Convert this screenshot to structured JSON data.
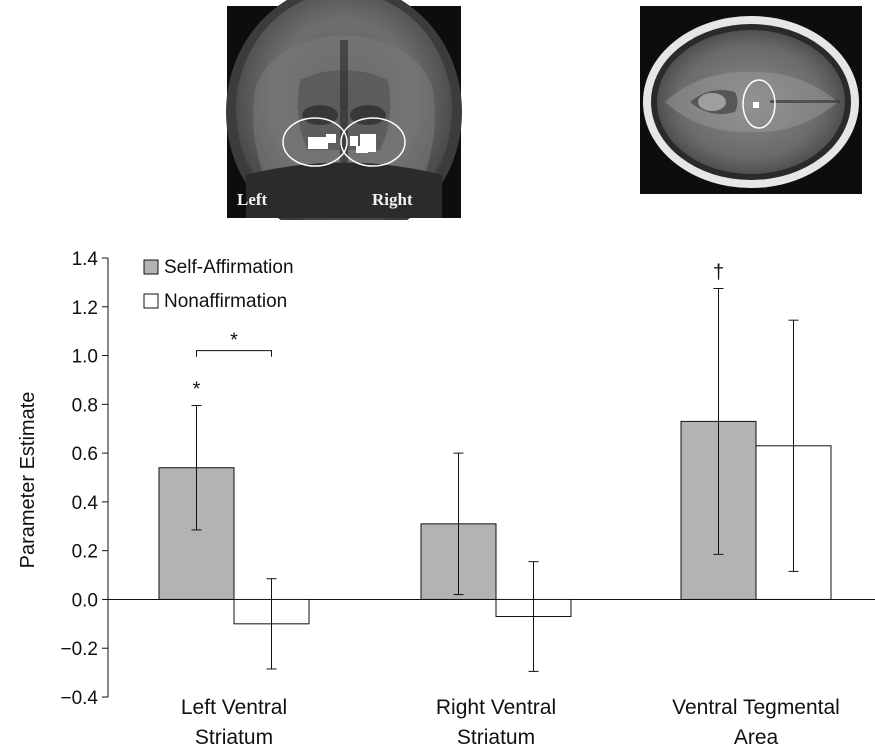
{
  "images": {
    "coronal_left_label": "Left",
    "coronal_right_label": "Right"
  },
  "chart_data": {
    "type": "bar",
    "categories": [
      [
        "Left Ventral",
        "Striatum"
      ],
      [
        "Right Ventral",
        "Striatum"
      ],
      [
        "Ventral Tegmental",
        "Area"
      ]
    ],
    "series": [
      {
        "name": "Self-Affirmation",
        "color": "#b3b3b3",
        "values": [
          0.54,
          0.31,
          0.73
        ],
        "error": [
          0.255,
          0.29,
          0.545
        ]
      },
      {
        "name": "Nonaffirmation",
        "color": "#ffffff",
        "values": [
          -0.1,
          -0.07,
          0.63
        ],
        "error": [
          0.185,
          0.225,
          0.515
        ]
      }
    ],
    "ylabel": "Parameter Estimate",
    "xlabel": "",
    "ylim": [
      -0.4,
      1.4
    ],
    "yticks": [
      "1.4",
      "1.2",
      "1.0",
      "0.8",
      "0.6",
      "0.4",
      "0.2",
      "0.0",
      "−0.2",
      "−0.4"
    ],
    "ytick_values": [
      1.4,
      1.2,
      1.0,
      0.8,
      0.6,
      0.4,
      0.2,
      0.0,
      -0.2,
      -0.4
    ],
    "legend_position": "top-left",
    "annotations": [
      {
        "text": "*",
        "category": 0,
        "series": 0,
        "kind": "above-error"
      },
      {
        "text": "*",
        "category": 0,
        "kind": "bracket",
        "y": 1.02
      },
      {
        "text": "†",
        "category": 2,
        "series": 0,
        "kind": "above-error"
      }
    ]
  }
}
